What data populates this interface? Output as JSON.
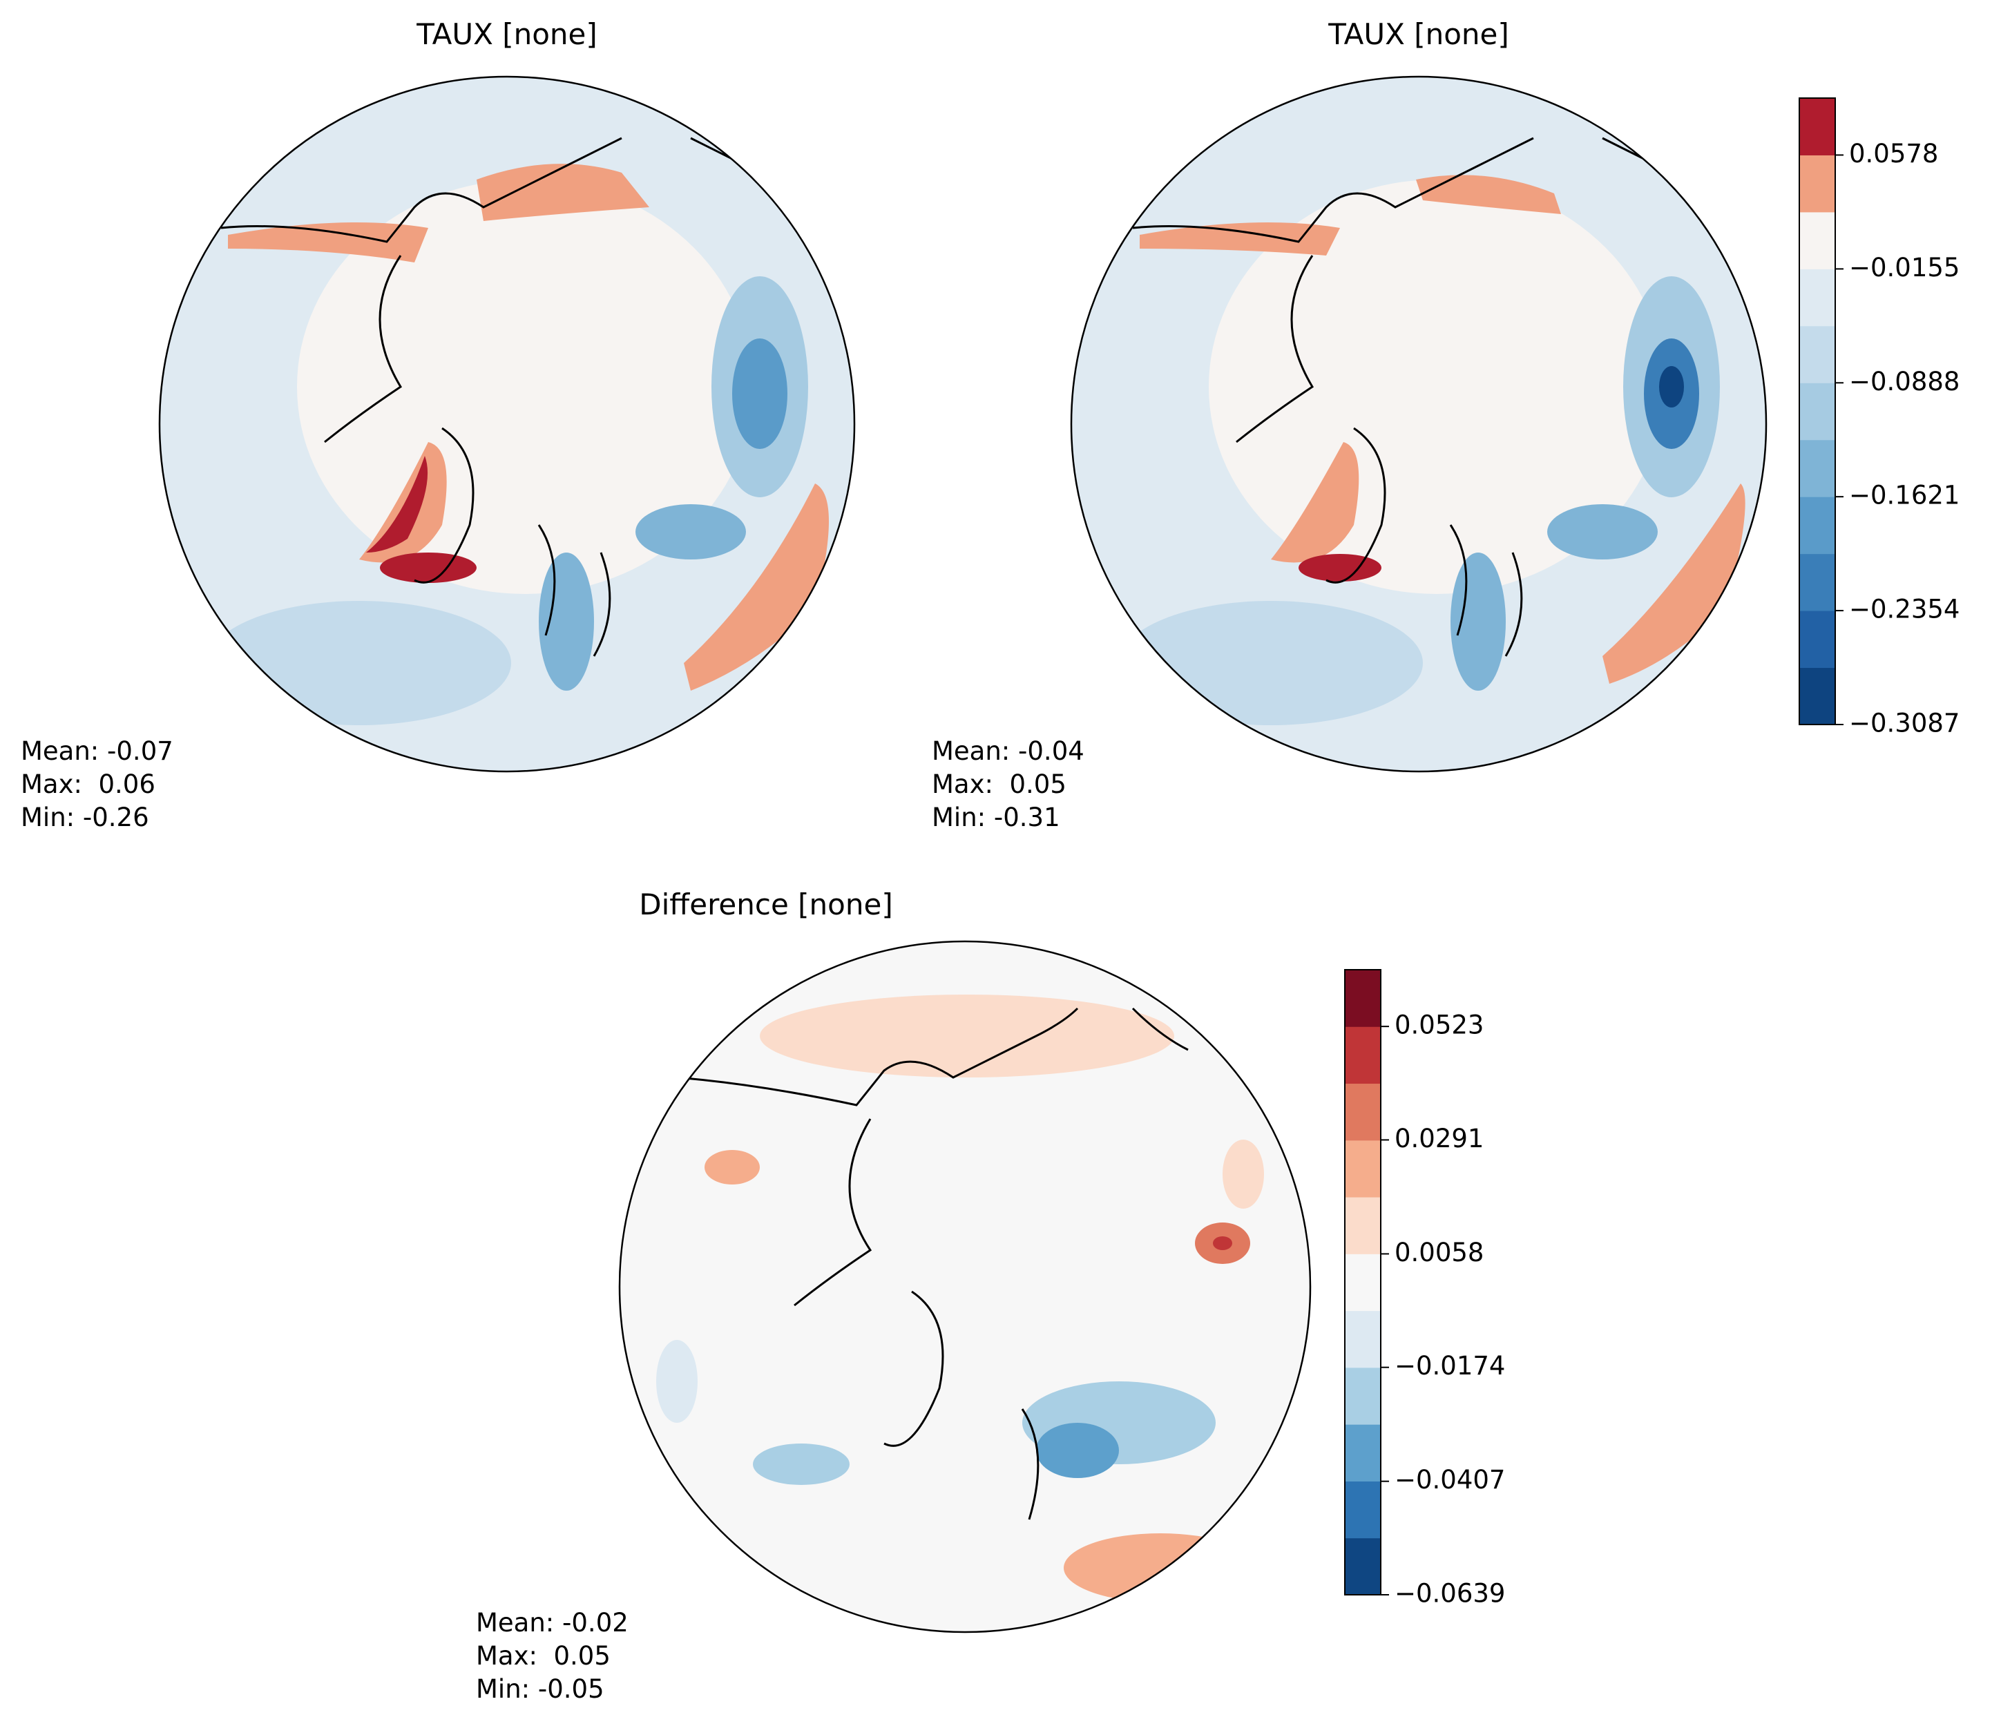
{
  "maps": {
    "panels": [
      {
        "title": "TAUX [none]",
        "stats": [
          "Mean: -0.07",
          "Max:  0.06",
          "Min: -0.26"
        ]
      },
      {
        "title": "TAUX [none]",
        "stats": [
          "Mean: -0.04",
          "Max:  0.05",
          "Min: -0.31"
        ]
      },
      {
        "title": "Difference [none]",
        "stats": [
          "Mean: -0.02",
          "Max:  0.05",
          "Min: -0.05"
        ]
      }
    ],
    "colorbars": [
      {
        "lim": [
          -0.3087,
          0.09445
        ],
        "ticks": [
          {
            "value": -0.3087,
            "label": "−0.3087"
          },
          {
            "value": -0.2354,
            "label": "−0.2354"
          },
          {
            "value": -0.1621,
            "label": "−0.1621"
          },
          {
            "value": -0.0888,
            "label": "−0.0888"
          },
          {
            "value": -0.0155,
            "label": "−0.0155"
          },
          0.0578
        ],
        "colors": [
          "#0e4480",
          "#2261a5",
          "#3a7eb8",
          "#5a9bc9",
          "#7fb4d6",
          "#a6cbe2",
          "#c4dbeb",
          "#dfeaf2",
          "#f7f4f2",
          "#f0a080",
          "#b01c2e"
        ]
      },
      {
        "lim": [
          -0.0639,
          0.0639
        ],
        "ticks": [
          {
            "value": -0.0639,
            "label": "−0.0639"
          },
          {
            "value": -0.0407,
            "label": "−0.0407"
          },
          {
            "value": -0.0174,
            "label": "−0.0174"
          },
          0.0058,
          0.0291,
          0.0523
        ],
        "colors": [
          "#0f4682",
          "#2d74b3",
          "#5da0cc",
          "#a9cfe4",
          "#dde9f2",
          "#f7f7f7",
          "#fbdccb",
          "#f5ad8c",
          "#e0795f",
          "#c03537",
          "#7b0d22"
        ]
      }
    ]
  }
}
